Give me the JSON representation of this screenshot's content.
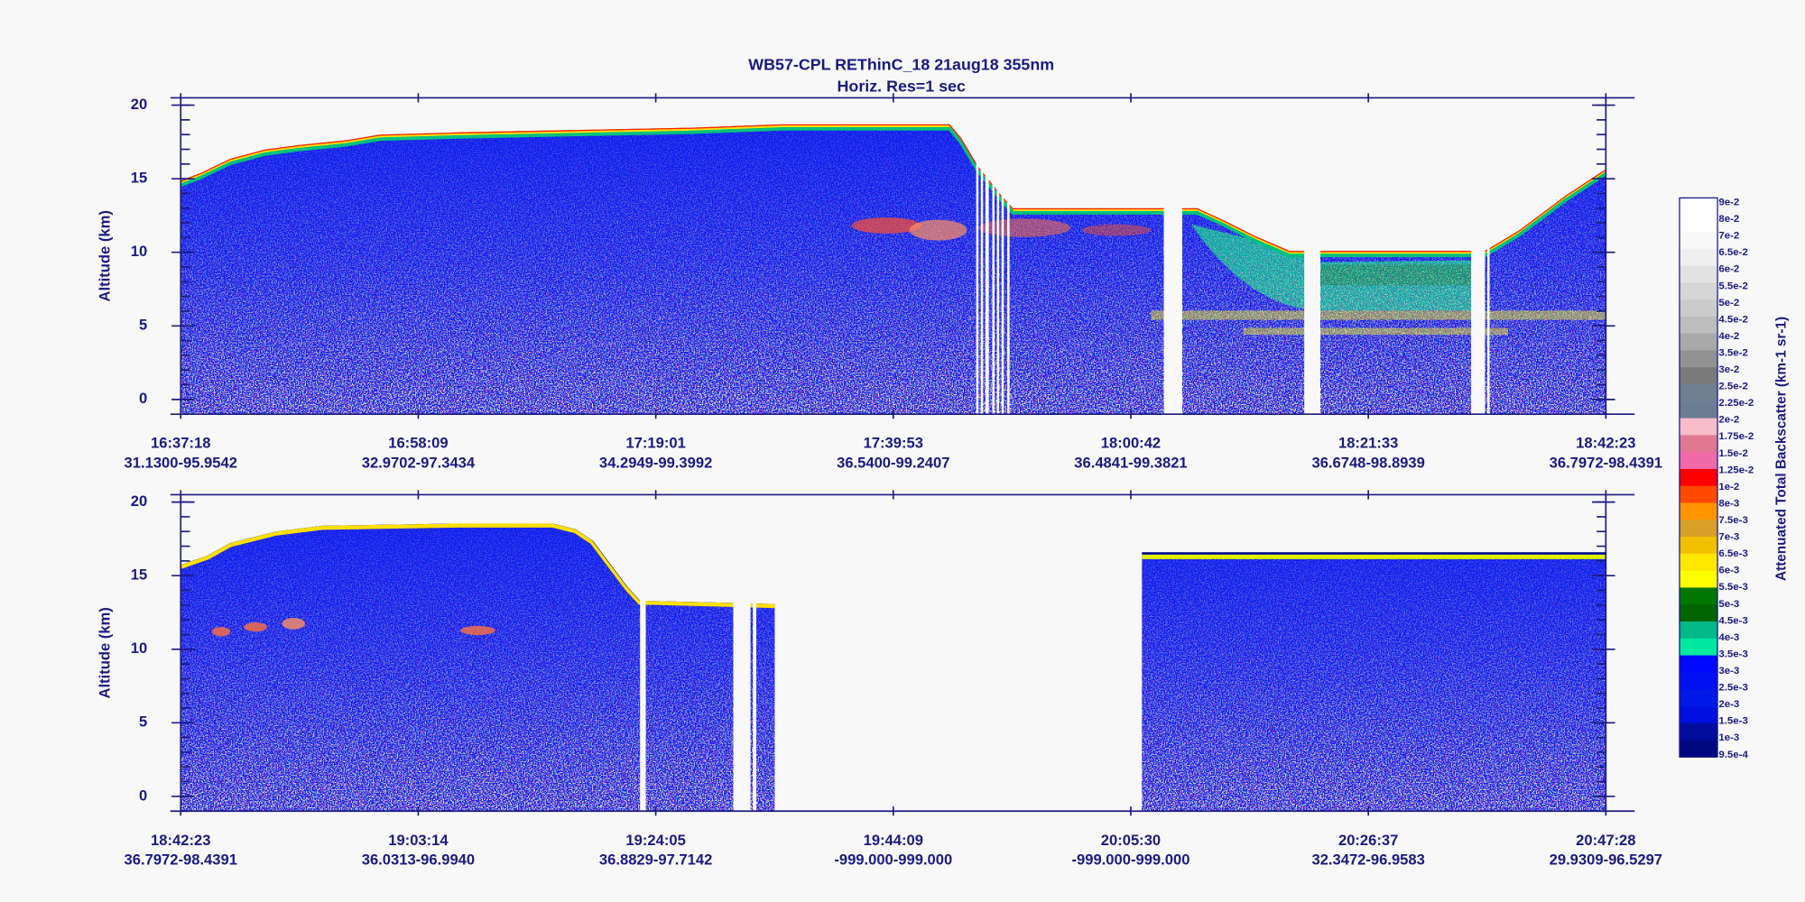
{
  "title": "WB57-CPL  REThinC_18  21aug18  355nm",
  "subtitle": "Horiz. Res=1 sec",
  "chart_data": [
    {
      "type": "heatmap",
      "ylabel": "Altitude (km)",
      "ylim": [
        -1,
        20.5
      ],
      "yticks": [
        0,
        5,
        10,
        15,
        20
      ],
      "yminor": 1,
      "x_labels": [
        {
          "time": "16:37:18",
          "position": "31.1300-95.9542"
        },
        {
          "time": "16:58:09",
          "position": "32.9702-97.3434"
        },
        {
          "time": "17:19:01",
          "position": "34.2949-99.3992"
        },
        {
          "time": "17:39:53",
          "position": "36.5400-99.2407"
        },
        {
          "time": "18:00:42",
          "position": "36.4841-99.3821"
        },
        {
          "time": "18:21:33",
          "position": "36.6748-98.8939"
        },
        {
          "time": "18:42:23",
          "position": "36.7972-98.4391"
        }
      ]
    },
    {
      "type": "heatmap",
      "ylabel": "Altitude (km)",
      "ylim": [
        -1,
        20.5
      ],
      "yticks": [
        0,
        5,
        10,
        15,
        20
      ],
      "yminor": 1,
      "x_labels": [
        {
          "time": "18:42:23",
          "position": "36.7972-98.4391"
        },
        {
          "time": "19:03:14",
          "position": "36.0313-96.9940"
        },
        {
          "time": "19:24:05",
          "position": "36.8829-97.7142"
        },
        {
          "time": "19:44:09",
          "position": "-999.000-999.000"
        },
        {
          "time": "20:05:30",
          "position": "-999.000-999.000"
        },
        {
          "time": "20:26:37",
          "position": "32.3472-96.9583"
        },
        {
          "time": "20:47:28",
          "position": "29.9309-96.5297"
        }
      ]
    }
  ],
  "colorbar": {
    "label": "Attenuated Total Backscatter (km-1 sr-1)",
    "levels": [
      "9e-2",
      "8e-2",
      "7e-2",
      "6.5e-2",
      "6e-2",
      "5.5e-2",
      "5e-2",
      "4.5e-2",
      "4e-2",
      "3.5e-2",
      "3e-2",
      "2.5e-2",
      "2.25e-2",
      "2e-2",
      "1.75e-2",
      "1.5e-2",
      "1.25e-2",
      "1e-2",
      "8e-3",
      "7.5e-3",
      "7e-3",
      "6.5e-3",
      "6e-3",
      "5.5e-3",
      "5e-3",
      "4.5e-3",
      "4e-3",
      "3.5e-3",
      "3e-3",
      "2.5e-3",
      "2e-3",
      "1.5e-3",
      "1e-3",
      "9.5e-4"
    ],
    "colors": [
      "#ffffff",
      "#ffffff",
      "#f8f8f8",
      "#efefef",
      "#e2e2e2",
      "#d6d6d6",
      "#cbcbcb",
      "#bdbdbd",
      "#a9a9a9",
      "#929292",
      "#7a7a7a",
      "#708090",
      "#6b7d92",
      "#f6bcc8",
      "#e07890",
      "#f06aa8",
      "#ff0000",
      "#ff4a00",
      "#ff9400",
      "#d8a028",
      "#f2c000",
      "#ffe800",
      "#ffff00",
      "#007800",
      "#006400",
      "#00b888",
      "#00e8a0",
      "#0008ff",
      "#0010f0",
      "#0018e8",
      "#0010e0",
      "#000c9c",
      "#000880"
    ]
  }
}
